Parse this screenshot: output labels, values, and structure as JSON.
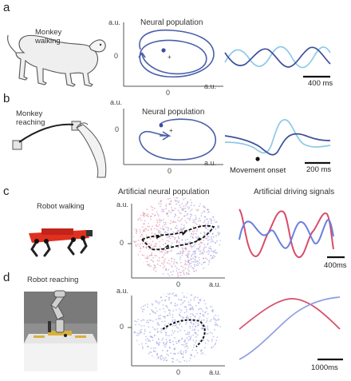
{
  "panels": {
    "a": {
      "letter": "a",
      "subject": "Monkey\nwalking",
      "population_title": "Neural population",
      "axis_unit": "a.u.",
      "y_tick": "0",
      "x_tick": "0",
      "scale_label": "400 ms"
    },
    "b": {
      "letter": "b",
      "subject": "Monkey\nreaching",
      "population_title": "Neural population",
      "axis_unit": "a.u.",
      "y_tick": "0",
      "x_tick": "0",
      "scale_label": "200 ms",
      "onset_label": "Movement onset"
    },
    "c": {
      "letter": "c",
      "subject": "Robot walking",
      "population_title": "Artificial neural population",
      "signals_title": "Artificial driving signals",
      "axis_unit": "a.u.",
      "y_tick": "0",
      "x_tick": "0",
      "scale_label": "400ms"
    },
    "d": {
      "letter": "d",
      "subject": "Robot reaching",
      "axis_unit": "a.u.",
      "y_tick": "0",
      "x_tick": "0",
      "scale_label": "1000ms"
    }
  },
  "colors": {
    "trajectory": "#4a5fa8",
    "trace_dark": "#3d4f9a",
    "trace_light": "#8ec9e8",
    "signal_red": "#d84c6a",
    "signal_blue": "#6a7fe0",
    "signal_blue_light": "#8fa0e6",
    "dots_red": "#e37c8e",
    "dots_blue": "#8c93e0"
  }
}
